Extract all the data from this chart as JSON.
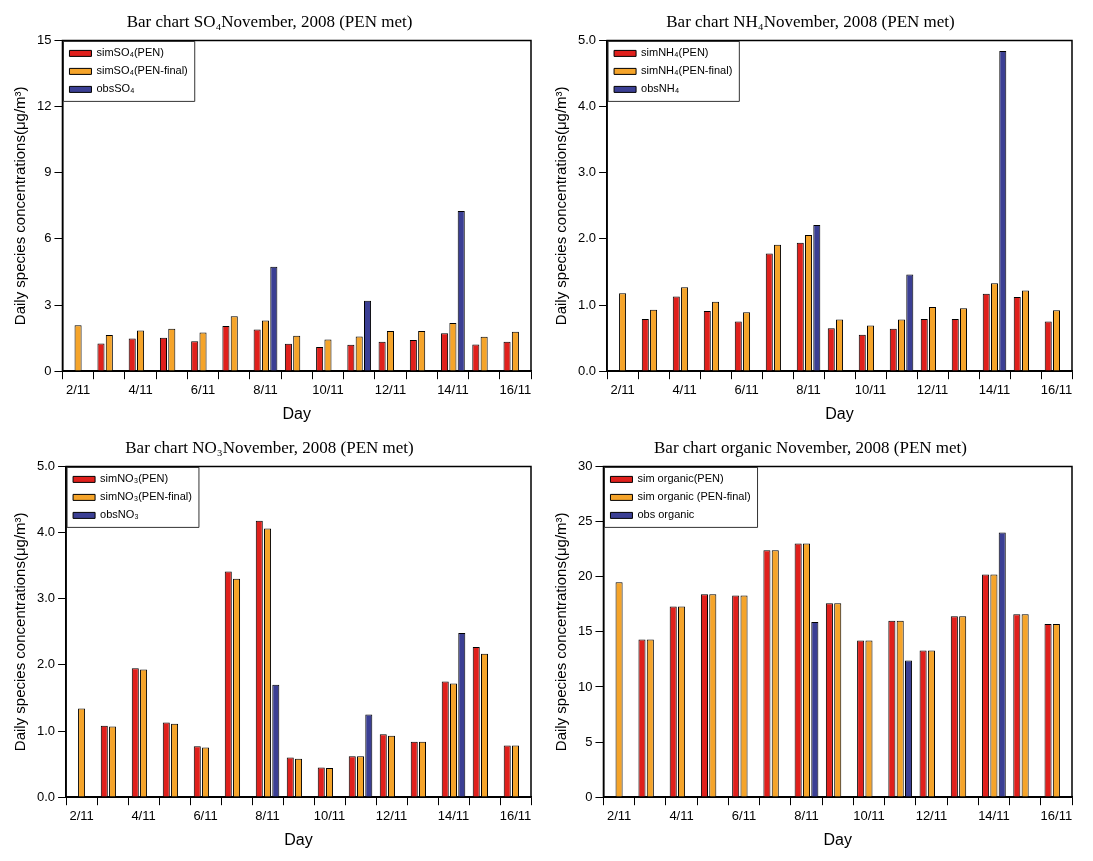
{
  "chart_data": [
    {
      "type": "bar",
      "title": "Bar chart SO₄November, 2008 (PEN met)",
      "xlabel": "Day",
      "ylabel": "Daily species concentrations(μg/m³)",
      "categories": [
        "2/11",
        null,
        "4/11",
        null,
        "6/11",
        null,
        "8/11",
        null,
        "10/11",
        null,
        "12/11",
        null,
        "14/11",
        null,
        "16/11"
      ],
      "ylim": [
        0,
        15
      ],
      "yticks": [
        0,
        3,
        6,
        9,
        12,
        15
      ],
      "legend": "top left",
      "grid": false,
      "series": [
        {
          "name": "simSO₄(PEN)",
          "color": "#e0201c",
          "values": [
            null,
            1.26,
            1.48,
            1.52,
            1.36,
            2.05,
            1.89,
            1.25,
            1.1,
            1.2,
            1.34,
            1.41,
            1.72,
            1.21,
            1.33
          ]
        },
        {
          "name": "simSO₄(PEN-final)",
          "color": "#f5a42a",
          "values": [
            2.08,
            1.64,
            1.84,
            1.92,
            1.75,
            2.49,
            2.3,
            1.61,
            1.44,
            1.57,
            1.82,
            1.82,
            2.18,
            1.56,
            1.79
          ]
        },
        {
          "name": "obsSO₄",
          "color": "#3b3f94",
          "values": [
            null,
            null,
            null,
            null,
            null,
            null,
            4.74,
            null,
            null,
            3.2,
            null,
            null,
            7.26,
            null,
            null
          ]
        }
      ]
    },
    {
      "type": "bar",
      "title": "Bar chart NH₄November, 2008 (PEN met)",
      "xlabel": "Day",
      "ylabel": "Daily species concentrations(μg/m³)",
      "categories": [
        "2/11",
        null,
        "4/11",
        null,
        "6/11",
        null,
        "8/11",
        null,
        "10/11",
        null,
        "12/11",
        null,
        "14/11",
        null,
        "16/11"
      ],
      "ylim": [
        0,
        5
      ],
      "yticks": [
        {
          "value": 0,
          "label": "0.0"
        },
        {
          "value": 1,
          "label": "1.0"
        },
        {
          "value": 2,
          "label": "2.0"
        },
        {
          "value": 3,
          "label": "3.0"
        },
        {
          "value": 4,
          "label": "4.0"
        },
        {
          "value": 5,
          "label": "5.0"
        }
      ],
      "legend": "top left",
      "grid": false,
      "series": [
        {
          "name": "simNH₄(PEN)",
          "color": "#e0201c",
          "values": [
            null,
            0.79,
            1.13,
            0.91,
            0.75,
            1.78,
            1.94,
            0.65,
            0.55,
            0.64,
            0.79,
            0.79,
            1.17,
            1.12,
            0.75
          ]
        },
        {
          "name": "simNH₄(PEN-final)",
          "color": "#f5a42a",
          "values": [
            1.18,
            0.93,
            1.27,
            1.05,
            0.89,
            1.91,
            2.06,
            0.78,
            0.69,
            0.78,
            0.97,
            0.95,
            1.33,
            1.22,
            0.92
          ]
        },
        {
          "name": "obsNH₄",
          "color": "#3b3f94",
          "values": [
            null,
            null,
            null,
            null,
            null,
            null,
            2.21,
            null,
            null,
            1.46,
            null,
            null,
            4.84,
            null,
            null
          ]
        }
      ]
    },
    {
      "type": "bar",
      "title": "Bar chart NO₃November, 2008 (PEN met)",
      "xlabel": "Day",
      "ylabel": "Daily species concentrations(μg/m³)",
      "categories": [
        "2/11",
        null,
        "4/11",
        null,
        "6/11",
        null,
        "8/11",
        null,
        "10/11",
        null,
        "12/11",
        null,
        "14/11",
        null,
        "16/11"
      ],
      "ylim": [
        0,
        5
      ],
      "yticks": [
        {
          "value": 0,
          "label": "0.0"
        },
        {
          "value": 1,
          "label": "1.0"
        },
        {
          "value": 2,
          "label": "2.0"
        },
        {
          "value": 3,
          "label": "3.0"
        },
        {
          "value": 4,
          "label": "4.0"
        },
        {
          "value": 5,
          "label": "5.0"
        }
      ],
      "legend": "top left",
      "grid": false,
      "series": [
        {
          "name": "simNO₃(PEN)",
          "color": "#e0201c",
          "values": [
            null,
            1.08,
            1.95,
            1.13,
            0.77,
            3.41,
            4.18,
            0.6,
            0.45,
            0.62,
            0.95,
            0.84,
            1.75,
            2.27,
            0.78
          ]
        },
        {
          "name": "simNO₃(PEN-final)",
          "color": "#f5a42a",
          "values": [
            1.34,
            1.07,
            1.93,
            1.11,
            0.75,
            3.3,
            4.06,
            0.58,
            0.44,
            0.62,
            0.93,
            0.84,
            1.72,
            2.17,
            0.78
          ]
        },
        {
          "name": "obsNO₃",
          "color": "#3b3f94",
          "values": [
            null,
            null,
            null,
            null,
            null,
            null,
            1.7,
            null,
            null,
            1.25,
            null,
            null,
            2.48,
            null,
            null
          ]
        }
      ]
    },
    {
      "type": "bar",
      "title": "Bar chart organic November, 2008 (PEN met)",
      "xlabel": "Day",
      "ylabel": "Daily species concentrations(μg/m³)",
      "categories": [
        "2/11",
        null,
        "4/11",
        null,
        "6/11",
        null,
        "8/11",
        null,
        "10/11",
        null,
        "12/11",
        null,
        "14/11",
        null,
        "16/11"
      ],
      "ylim": [
        0,
        30
      ],
      "yticks": [
        0,
        5,
        10,
        15,
        20,
        25,
        30
      ],
      "legend": "top left",
      "grid": false,
      "series": [
        {
          "name": "sim organic(PEN)",
          "color": "#e0201c",
          "values": [
            null,
            14.3,
            17.3,
            18.4,
            18.3,
            22.4,
            23.0,
            17.6,
            14.2,
            16.0,
            13.3,
            16.4,
            20.2,
            16.6,
            15.7
          ]
        },
        {
          "name": "sim organic (PEN-final)",
          "color": "#f5a42a",
          "values": [
            19.5,
            14.3,
            17.3,
            18.4,
            18.3,
            22.4,
            23.0,
            17.6,
            14.2,
            16.0,
            13.3,
            16.4,
            20.2,
            16.6,
            15.7
          ]
        },
        {
          "name": "obs organic",
          "color": "#3b3f94",
          "values": [
            null,
            null,
            null,
            null,
            null,
            null,
            15.9,
            null,
            null,
            12.4,
            null,
            null,
            24.0,
            null,
            null
          ]
        }
      ]
    }
  ]
}
